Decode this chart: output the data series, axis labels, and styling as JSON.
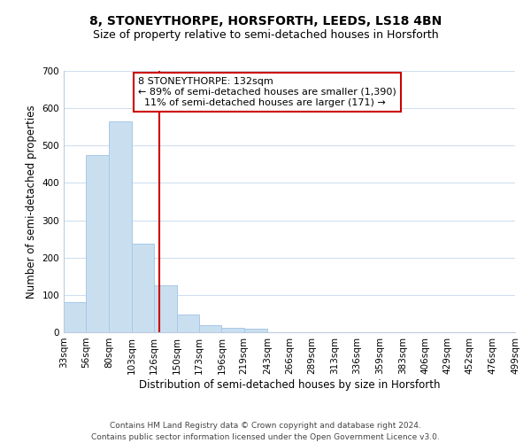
{
  "title": "8, STONEYTHORPE, HORSFORTH, LEEDS, LS18 4BN",
  "subtitle": "Size of property relative to semi-detached houses in Horsforth",
  "xlabel": "Distribution of semi-detached houses by size in Horsforth",
  "ylabel": "Number of semi-detached properties",
  "footer_line1": "Contains HM Land Registry data © Crown copyright and database right 2024.",
  "footer_line2": "Contains public sector information licensed under the Open Government Licence v3.0.",
  "bin_edges": [
    33,
    56,
    80,
    103,
    126,
    150,
    173,
    196,
    219,
    243,
    266,
    289,
    313,
    336,
    359,
    383,
    406,
    429,
    452,
    476,
    499
  ],
  "bin_labels": [
    "33sqm",
    "56sqm",
    "80sqm",
    "103sqm",
    "126sqm",
    "150sqm",
    "173sqm",
    "196sqm",
    "219sqm",
    "243sqm",
    "266sqm",
    "289sqm",
    "313sqm",
    "336sqm",
    "359sqm",
    "383sqm",
    "406sqm",
    "429sqm",
    "452sqm",
    "476sqm",
    "499sqm"
  ],
  "counts": [
    80,
    475,
    565,
    238,
    125,
    48,
    20,
    13,
    10,
    0,
    0,
    0,
    0,
    0,
    0,
    0,
    0,
    0,
    0,
    0
  ],
  "bar_color": "#c9dff0",
  "bar_edge_color": "#a8c8e8",
  "property_size": 132,
  "property_label": "8 STONEYTHORPE: 132sqm",
  "pct_smaller": 89,
  "count_smaller": 1390,
  "pct_larger": 11,
  "count_larger": 171,
  "vline_color": "#cc0000",
  "annotation_box_color": "#cc0000",
  "ylim": [
    0,
    700
  ],
  "yticks": [
    0,
    100,
    200,
    300,
    400,
    500,
    600,
    700
  ],
  "background_color": "#ffffff",
  "grid_color": "#d0dff0",
  "title_fontsize": 10,
  "subtitle_fontsize": 9,
  "axis_label_fontsize": 8.5,
  "tick_fontsize": 7.5,
  "annotation_fontsize": 8,
  "footer_fontsize": 6.5
}
